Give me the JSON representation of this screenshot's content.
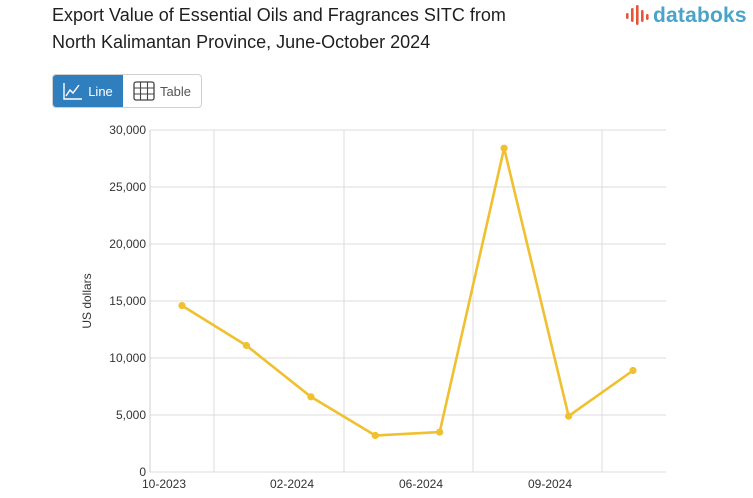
{
  "header": {
    "title_line1": "Export Value of Essential Oils and Fragrances SITC from",
    "title_line2": "North Kalimantan Province, June-October 2024"
  },
  "brand": {
    "name": "databoks",
    "color": "#4aa3c8",
    "mark_color": "#e5553a"
  },
  "view_toggle": {
    "line_label": "Line",
    "table_label": "Table",
    "active": "Line",
    "active_color": "#2f7fbf"
  },
  "chart_data": {
    "type": "line",
    "title": "Export Value of Essential Oils and Fragrances SITC from North Kalimantan Province, June-October 2024",
    "xlabel": "",
    "ylabel": "US dollars",
    "x_tick_labels": [
      "10-2023",
      "02-2024",
      "06-2024",
      "09-2024"
    ],
    "y_ticks": [
      0,
      5000,
      10000,
      15000,
      20000,
      25000,
      30000
    ],
    "y_tick_labels": [
      "0",
      "5,000",
      "10,000",
      "15,000",
      "20,000",
      "25,000",
      "30,000"
    ],
    "ylim": [
      0,
      30000
    ],
    "grid": true,
    "legend": "none",
    "series": [
      {
        "color": "#f0c030",
        "values": [
          14600,
          11100,
          6600,
          3200,
          3500,
          28400,
          4900,
          8900
        ]
      }
    ]
  }
}
